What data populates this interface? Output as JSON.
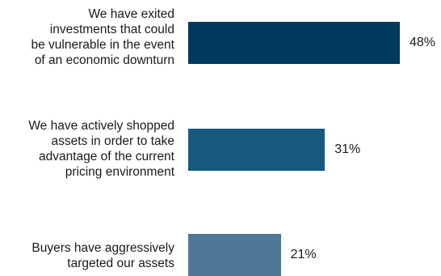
{
  "chart_data": {
    "type": "bar",
    "orientation": "horizontal",
    "categories": [
      "We have exited\ninvestments that could\nbe vulnerable in the event\nof an economic downturn",
      "We have actively shopped\nassets in order to take\nadvantage of the current\npricing environment",
      "Buyers have aggressively\ntargeted our assets"
    ],
    "values": [
      48,
      31,
      21
    ],
    "value_labels": [
      "48%",
      "31%",
      "21%"
    ],
    "bar_colors": [
      "#003a5d",
      "#165a7e",
      "#4f7898"
    ],
    "title": "",
    "xlabel": "",
    "ylabel": "",
    "xlim": [
      0,
      50
    ],
    "grid": false,
    "legend": "none"
  }
}
